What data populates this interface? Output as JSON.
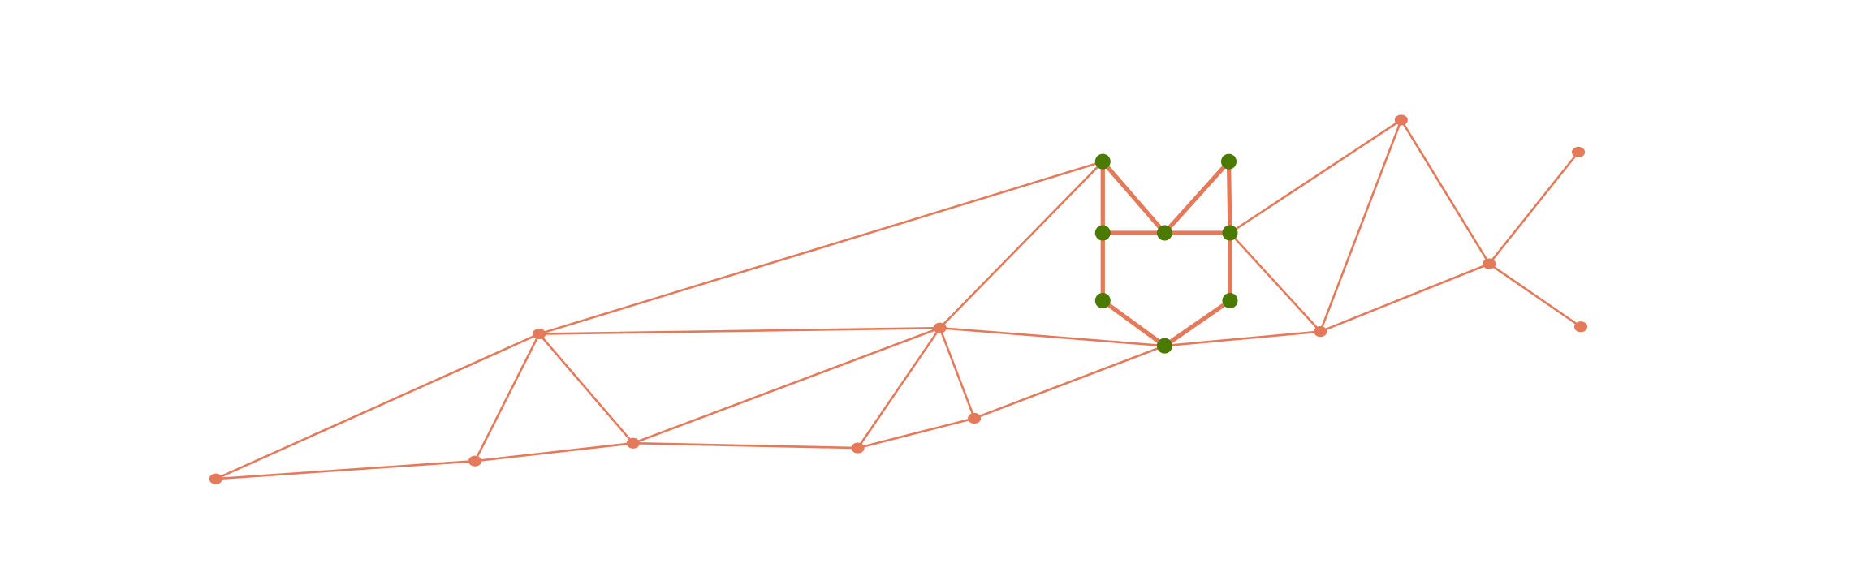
{
  "diagram": {
    "type": "network-graph",
    "colors": {
      "edge": "#e57a5a",
      "node_default": "#e57a5a",
      "node_highlight": "#4a7a00"
    },
    "nodes": [
      {
        "id": "A",
        "highlighted": false
      },
      {
        "id": "B",
        "highlighted": false
      },
      {
        "id": "C",
        "highlighted": false
      },
      {
        "id": "D",
        "highlighted": false
      },
      {
        "id": "E",
        "highlighted": false
      },
      {
        "id": "F",
        "highlighted": false
      },
      {
        "id": "G",
        "highlighted": false
      },
      {
        "id": "H",
        "highlighted": true
      },
      {
        "id": "I",
        "highlighted": true
      },
      {
        "id": "J",
        "highlighted": true
      },
      {
        "id": "K",
        "highlighted": true
      },
      {
        "id": "L",
        "highlighted": true
      },
      {
        "id": "M",
        "highlighted": true
      },
      {
        "id": "N",
        "highlighted": true
      },
      {
        "id": "O",
        "highlighted": true
      },
      {
        "id": "P",
        "highlighted": false
      },
      {
        "id": "Q",
        "highlighted": false
      },
      {
        "id": "R",
        "highlighted": false
      },
      {
        "id": "S",
        "highlighted": false
      },
      {
        "id": "T",
        "highlighted": false
      }
    ],
    "edges": [
      [
        "A",
        "C"
      ],
      [
        "A",
        "B"
      ],
      [
        "B",
        "C"
      ],
      [
        "B",
        "D"
      ],
      [
        "C",
        "D"
      ],
      [
        "C",
        "H"
      ],
      [
        "C",
        "F"
      ],
      [
        "D",
        "F"
      ],
      [
        "D",
        "E"
      ],
      [
        "E",
        "F"
      ],
      [
        "E",
        "G"
      ],
      [
        "F",
        "G"
      ],
      [
        "F",
        "H"
      ],
      [
        "F",
        "O"
      ],
      [
        "G",
        "O"
      ],
      [
        "H",
        "J"
      ],
      [
        "H",
        "K"
      ],
      [
        "K",
        "I"
      ],
      [
        "I",
        "L"
      ],
      [
        "J",
        "K"
      ],
      [
        "K",
        "L"
      ],
      [
        "J",
        "M"
      ],
      [
        "L",
        "N"
      ],
      [
        "M",
        "O"
      ],
      [
        "N",
        "O"
      ],
      [
        "O",
        "P"
      ],
      [
        "L",
        "Q"
      ],
      [
        "L",
        "P"
      ],
      [
        "P",
        "Q"
      ],
      [
        "Q",
        "R"
      ],
      [
        "P",
        "R"
      ],
      [
        "R",
        "S"
      ],
      [
        "R",
        "T"
      ]
    ]
  }
}
